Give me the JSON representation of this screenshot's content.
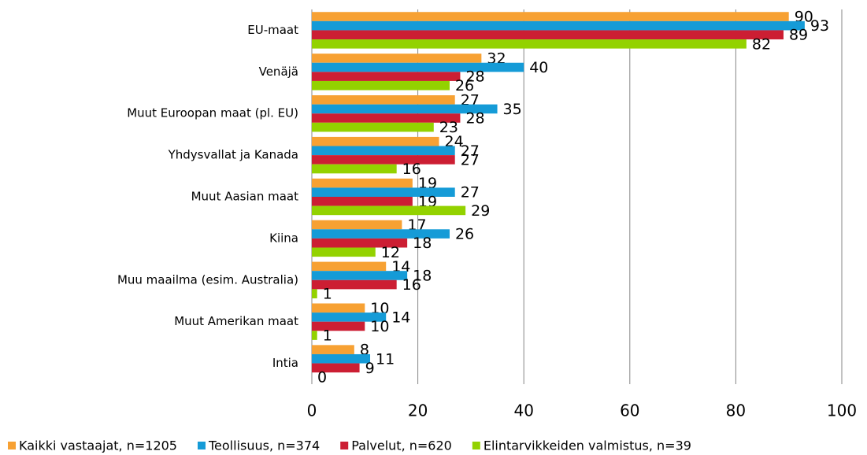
{
  "chart_data": {
    "type": "barh",
    "categories": [
      "EU-maat",
      "Venäjä",
      "Muut Euroopan maat (pl. EU)",
      "Yhdysvallat ja Kanada",
      "Muut Aasian maat",
      "Kiina",
      "Muu maailma (esim. Australia)",
      "Muut Amerikan maat",
      "Intia"
    ],
    "series": [
      {
        "name": "Kaikki vastaajat, n=1205",
        "color": "#f7a133",
        "values": [
          90,
          32,
          27,
          24,
          19,
          17,
          14,
          10,
          8
        ]
      },
      {
        "name": "Teollisuus, n=374",
        "color": "#159bd7",
        "values": [
          93,
          40,
          35,
          27,
          27,
          26,
          18,
          14,
          11
        ]
      },
      {
        "name": "Palvelut, n=620",
        "color": "#cc1e33",
        "values": [
          89,
          28,
          28,
          27,
          19,
          18,
          16,
          10,
          9
        ]
      },
      {
        "name": "Elintarvikkeiden valmistus, n=39",
        "color": "#93d200",
        "values": [
          82,
          26,
          23,
          16,
          29,
          12,
          1,
          1,
          0
        ]
      }
    ],
    "xlim": [
      0,
      100
    ],
    "xticks": [
      0,
      20,
      40,
      60,
      80,
      100
    ],
    "grid": true,
    "legend": "bottom"
  }
}
